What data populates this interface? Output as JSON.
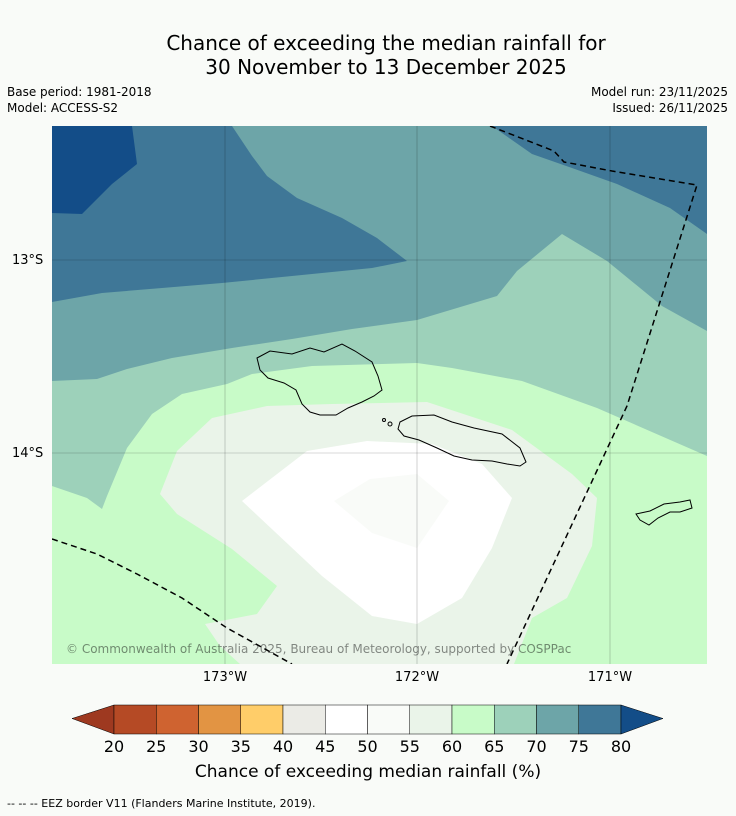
{
  "header": {
    "title_line1": "Chance of exceeding the median rainfall for",
    "title_line2": "30 November to 13 December 2025",
    "base_period": "Base period: 1981-2018",
    "model": "Model: ACCESS-S2",
    "model_run": "Model run: 23/11/2025",
    "issued": "Issued: 26/11/2025"
  },
  "map": {
    "lat_labels": [
      "13°S",
      "14°S"
    ],
    "lon_labels": [
      "173°W",
      "172°W",
      "171°W"
    ],
    "copyright": "© Commonwealth of Australia 2025, Bureau of Meteorology, supported by COSPPac"
  },
  "colorbar": {
    "ticks": [
      "20",
      "25",
      "30",
      "35",
      "40",
      "45",
      "50",
      "55",
      "60",
      "65",
      "70",
      "75",
      "80"
    ],
    "colors": [
      "#9e3920",
      "#b54a25",
      "#cf6330",
      "#e29443",
      "#ffcd69",
      "#ebebe6",
      "#ffffff",
      "#f9fbf8",
      "#eaf4e9",
      "#c8fbc8",
      "#9dd1ba",
      "#6da5a8",
      "#3f7797",
      "#134d88"
    ],
    "label": "Chance of exceeding median rainfall (%)"
  },
  "footer": {
    "eez_note": "--  --  -- EEZ border V11 (Flanders Marine Institute, 2019)."
  }
}
